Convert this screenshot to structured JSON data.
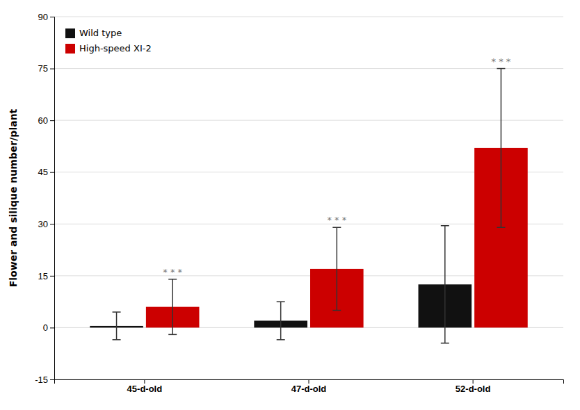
{
  "chart_data": {
    "type": "bar",
    "categories": [
      "45-d-old",
      "47-d-old",
      "52-d-old"
    ],
    "series": [
      {
        "name": "Wild type",
        "color": "#111111",
        "values": [
          0.5,
          2.0,
          12.5
        ],
        "errors": [
          4.0,
          5.5,
          17.0
        ]
      },
      {
        "name": "High-speed XI-2",
        "color": "#cc0000",
        "values": [
          6.0,
          17.0,
          52.0
        ],
        "errors": [
          8.0,
          12.0,
          23.0
        ],
        "annotations": [
          "* * *",
          "* * *",
          "* * *"
        ]
      }
    ],
    "ylabel": "Flower and silique number/plant",
    "ylim": [
      -15,
      90
    ],
    "yticks": [
      -15,
      0,
      15,
      30,
      45,
      60,
      75,
      90
    ],
    "grid": true,
    "legend": "upper left"
  }
}
